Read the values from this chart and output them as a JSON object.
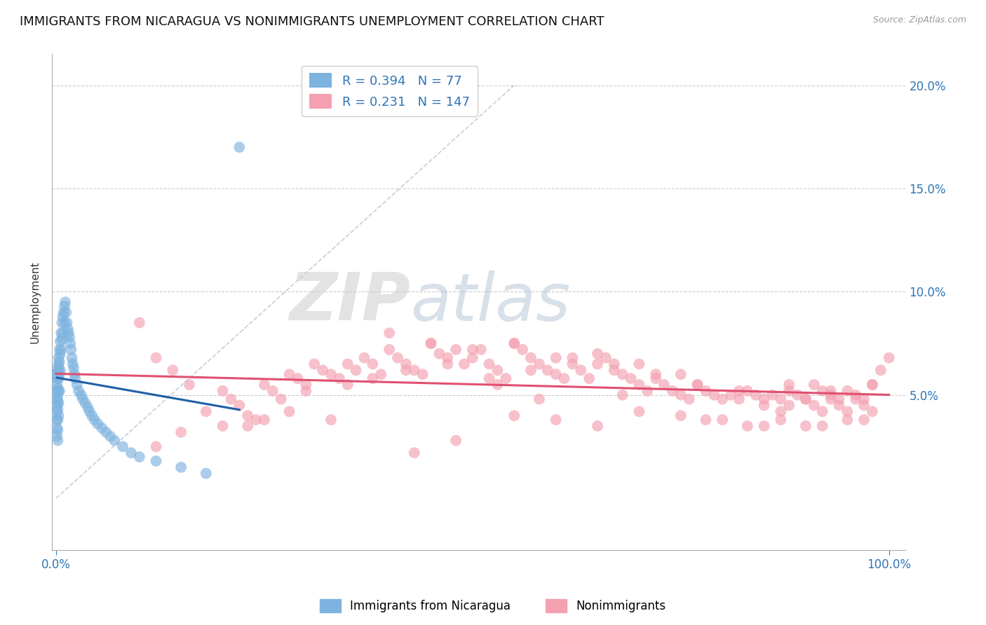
{
  "title": "IMMIGRANTS FROM NICARAGUA VS NONIMMIGRANTS UNEMPLOYMENT CORRELATION CHART",
  "source": "Source: ZipAtlas.com",
  "ylabel": "Unemployment",
  "xlim": [
    -0.005,
    1.02
  ],
  "ylim": [
    -0.025,
    0.215
  ],
  "yticks": [
    0.05,
    0.1,
    0.15,
    0.2
  ],
  "ytick_labels": [
    "5.0%",
    "10.0%",
    "15.0%",
    "20.0%"
  ],
  "xtick_labels": [
    "0.0%",
    "100.0%"
  ],
  "legend_label1": "Immigrants from Nicaragua",
  "legend_label2": "Nonimmigrants",
  "r1": 0.394,
  "n1": 77,
  "r2": 0.231,
  "n2": 147,
  "color_blue": "#7EB3E0",
  "color_pink": "#F4A0B0",
  "color_blue_line": "#1F5FA6",
  "color_pink_line": "#E05070",
  "grid_color": "#CCCCCC",
  "title_fontsize": 13,
  "axis_label_fontsize": 11,
  "tick_fontsize": 12,
  "legend_fontsize": 13,
  "blue_scatter_x": [
    0.001,
    0.001,
    0.001,
    0.001,
    0.001,
    0.001,
    0.001,
    0.001,
    0.001,
    0.001,
    0.002,
    0.002,
    0.002,
    0.002,
    0.002,
    0.002,
    0.002,
    0.002,
    0.002,
    0.002,
    0.003,
    0.003,
    0.003,
    0.003,
    0.003,
    0.003,
    0.003,
    0.004,
    0.004,
    0.004,
    0.004,
    0.005,
    0.005,
    0.005,
    0.006,
    0.006,
    0.007,
    0.007,
    0.008,
    0.008,
    0.009,
    0.01,
    0.01,
    0.011,
    0.012,
    0.013,
    0.014,
    0.015,
    0.016,
    0.017,
    0.018,
    0.019,
    0.02,
    0.021,
    0.022,
    0.023,
    0.025,
    0.027,
    0.03,
    0.032,
    0.035,
    0.038,
    0.04,
    0.043,
    0.046,
    0.05,
    0.055,
    0.06,
    0.065,
    0.07,
    0.08,
    0.09,
    0.1,
    0.12,
    0.15,
    0.18,
    0.22
  ],
  "blue_scatter_y": [
    0.058,
    0.055,
    0.052,
    0.06,
    0.048,
    0.045,
    0.042,
    0.038,
    0.034,
    0.03,
    0.063,
    0.061,
    0.058,
    0.053,
    0.05,
    0.047,
    0.043,
    0.038,
    0.033,
    0.028,
    0.068,
    0.065,
    0.062,
    0.058,
    0.052,
    0.046,
    0.04,
    0.072,
    0.066,
    0.06,
    0.052,
    0.076,
    0.07,
    0.062,
    0.08,
    0.072,
    0.085,
    0.077,
    0.088,
    0.08,
    0.09,
    0.093,
    0.085,
    0.095,
    0.09,
    0.085,
    0.082,
    0.08,
    0.078,
    0.075,
    0.072,
    0.068,
    0.065,
    0.063,
    0.06,
    0.058,
    0.055,
    0.052,
    0.05,
    0.048,
    0.046,
    0.044,
    0.042,
    0.04,
    0.038,
    0.036,
    0.034,
    0.032,
    0.03,
    0.028,
    0.025,
    0.022,
    0.02,
    0.018,
    0.015,
    0.012,
    0.17
  ],
  "pink_scatter_x": [
    0.1,
    0.12,
    0.14,
    0.16,
    0.18,
    0.2,
    0.21,
    0.22,
    0.23,
    0.24,
    0.25,
    0.26,
    0.27,
    0.28,
    0.29,
    0.3,
    0.31,
    0.32,
    0.33,
    0.34,
    0.35,
    0.36,
    0.37,
    0.38,
    0.39,
    0.4,
    0.41,
    0.42,
    0.43,
    0.44,
    0.45,
    0.46,
    0.47,
    0.48,
    0.49,
    0.5,
    0.51,
    0.52,
    0.53,
    0.54,
    0.55,
    0.56,
    0.57,
    0.58,
    0.59,
    0.6,
    0.61,
    0.62,
    0.63,
    0.64,
    0.65,
    0.66,
    0.67,
    0.68,
    0.69,
    0.7,
    0.71,
    0.72,
    0.73,
    0.74,
    0.75,
    0.76,
    0.77,
    0.78,
    0.79,
    0.8,
    0.81,
    0.82,
    0.83,
    0.84,
    0.85,
    0.86,
    0.87,
    0.88,
    0.89,
    0.9,
    0.91,
    0.92,
    0.93,
    0.94,
    0.95,
    0.96,
    0.97,
    0.98,
    0.99,
    1.0,
    0.85,
    0.87,
    0.88,
    0.9,
    0.91,
    0.92,
    0.93,
    0.94,
    0.95,
    0.96,
    0.97,
    0.98,
    0.5,
    0.55,
    0.6,
    0.65,
    0.7,
    0.75,
    0.4,
    0.45,
    0.35,
    0.3,
    0.25,
    0.2,
    0.15,
    0.12,
    0.38,
    0.42,
    0.47,
    0.52,
    0.57,
    0.62,
    0.67,
    0.72,
    0.77,
    0.82,
    0.88,
    0.93,
    0.98,
    0.55,
    0.6,
    0.65,
    0.8,
    0.85,
    0.9,
    0.95,
    0.7,
    0.75,
    0.78,
    0.83,
    0.87,
    0.92,
    0.97,
    0.53,
    0.48,
    0.43,
    0.28,
    0.23,
    0.33,
    0.58,
    0.68
  ],
  "pink_scatter_y": [
    0.085,
    0.068,
    0.062,
    0.055,
    0.042,
    0.052,
    0.048,
    0.045,
    0.04,
    0.038,
    0.055,
    0.052,
    0.048,
    0.06,
    0.058,
    0.055,
    0.065,
    0.062,
    0.06,
    0.058,
    0.055,
    0.062,
    0.068,
    0.065,
    0.06,
    0.072,
    0.068,
    0.065,
    0.062,
    0.06,
    0.075,
    0.07,
    0.068,
    0.072,
    0.065,
    0.068,
    0.072,
    0.065,
    0.062,
    0.058,
    0.075,
    0.072,
    0.068,
    0.065,
    0.062,
    0.06,
    0.058,
    0.065,
    0.062,
    0.058,
    0.065,
    0.068,
    0.062,
    0.06,
    0.058,
    0.055,
    0.052,
    0.058,
    0.055,
    0.052,
    0.05,
    0.048,
    0.055,
    0.052,
    0.05,
    0.048,
    0.05,
    0.048,
    0.052,
    0.05,
    0.048,
    0.05,
    0.048,
    0.052,
    0.05,
    0.048,
    0.055,
    0.052,
    0.05,
    0.048,
    0.052,
    0.05,
    0.048,
    0.055,
    0.062,
    0.068,
    0.045,
    0.042,
    0.045,
    0.048,
    0.045,
    0.042,
    0.048,
    0.045,
    0.042,
    0.048,
    0.045,
    0.042,
    0.072,
    0.075,
    0.068,
    0.07,
    0.065,
    0.06,
    0.08,
    0.075,
    0.065,
    0.052,
    0.038,
    0.035,
    0.032,
    0.025,
    0.058,
    0.062,
    0.065,
    0.058,
    0.062,
    0.068,
    0.065,
    0.06,
    0.055,
    0.052,
    0.055,
    0.052,
    0.055,
    0.04,
    0.038,
    0.035,
    0.038,
    0.035,
    0.035,
    0.038,
    0.042,
    0.04,
    0.038,
    0.035,
    0.038,
    0.035,
    0.038,
    0.055,
    0.028,
    0.022,
    0.042,
    0.035,
    0.038,
    0.048,
    0.05
  ]
}
